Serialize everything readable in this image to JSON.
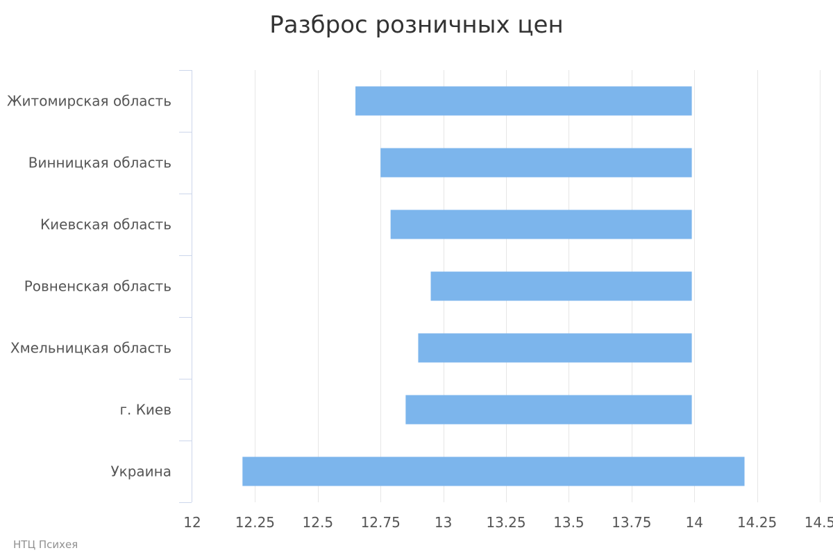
{
  "chart_data": {
    "type": "bar",
    "orientation": "horizontal",
    "floating": true,
    "title": "Разброс розничных цен",
    "xlabel": "",
    "ylabel": "",
    "categories": [
      "Житомирская область",
      "Винницкая область",
      "Киевская область",
      "Ровненская область",
      "Хмельницкая область",
      "г. Киев",
      "Украина"
    ],
    "series": [
      {
        "low": [
          12.65,
          12.75,
          12.79,
          12.95,
          12.9,
          12.85,
          12.2
        ],
        "high": [
          13.99,
          13.99,
          13.99,
          13.99,
          13.99,
          13.99,
          14.2
        ]
      }
    ],
    "xlim": [
      12,
      14.5
    ],
    "xticks": [
      12,
      12.25,
      12.5,
      12.75,
      13,
      13.25,
      13.5,
      13.75,
      14,
      14.25,
      14.5
    ],
    "xtick_labels": [
      "12",
      "12.25",
      "12.5",
      "12.75",
      "13",
      "13.25",
      "13.5",
      "13.75",
      "14",
      "14.25",
      "14.5"
    ],
    "grid": true,
    "legend": "none",
    "bar_color": "#7cb5ec",
    "grid_color": "#e6e6e6",
    "axis_color": "#ccd6eb"
  },
  "credits": {
    "text": "НТЦ Психея"
  }
}
